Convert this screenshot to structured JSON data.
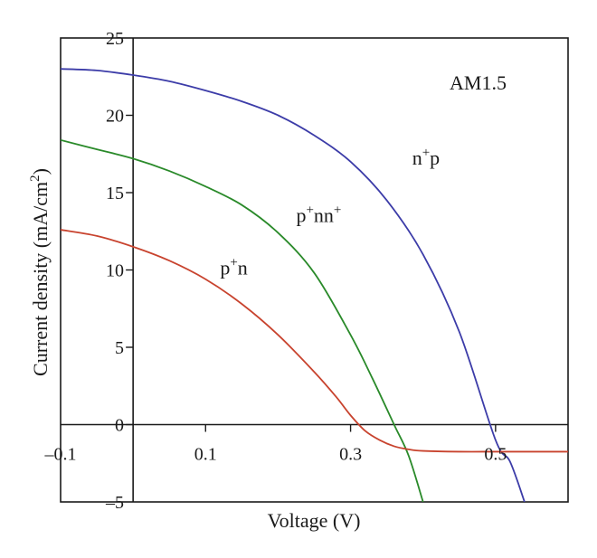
{
  "chart_data": {
    "type": "line",
    "title": "",
    "xlabel": "Voltage (V)",
    "ylabel_parts": {
      "main": "Current density (mA/cm",
      "sup": "2",
      "close": ")"
    },
    "xlim": [
      -0.1,
      0.6
    ],
    "ylim": [
      -5,
      25
    ],
    "x_ticks": [
      {
        "value": -0.1,
        "label": "–0.1"
      },
      {
        "value": 0.1,
        "label": "0.1"
      },
      {
        "value": 0.3,
        "label": "0.3"
      },
      {
        "value": 0.5,
        "label": "0.5"
      }
    ],
    "y_ticks": [
      {
        "value": 25,
        "label": "25"
      },
      {
        "value": 20,
        "label": "20"
      },
      {
        "value": 15,
        "label": "15"
      },
      {
        "value": 10,
        "label": "10"
      },
      {
        "value": 5,
        "label": "5"
      },
      {
        "value": 0,
        "label": "0"
      },
      {
        "value": -5,
        "label": "–5"
      }
    ],
    "annotation": "AM1.5",
    "series": [
      {
        "label_parts": [
          {
            "t": "n"
          },
          {
            "t": "+",
            "sup": true
          },
          {
            "t": "p"
          }
        ],
        "color": "#3c3ca8",
        "label_at": [
          0.385,
          16.8
        ],
        "x": [
          -0.1,
          -0.05,
          0.0,
          0.05,
          0.1,
          0.15,
          0.2,
          0.25,
          0.3,
          0.35,
          0.4,
          0.45,
          0.5,
          0.52,
          0.54
        ],
        "y": [
          23.0,
          22.9,
          22.6,
          22.2,
          21.6,
          20.9,
          20.0,
          18.7,
          17.0,
          14.5,
          11.0,
          6.0,
          -1.0,
          -2.4,
          -5.0
        ]
      },
      {
        "label_parts": [
          {
            "t": "p"
          },
          {
            "t": "+",
            "sup": true
          },
          {
            "t": "nn"
          },
          {
            "t": "+",
            "sup": true
          }
        ],
        "color": "#2a8a2a",
        "label_at": [
          0.225,
          13.1
        ],
        "x": [
          -0.1,
          -0.05,
          0.0,
          0.05,
          0.1,
          0.15,
          0.2,
          0.25,
          0.3,
          0.33,
          0.36,
          0.38,
          0.4
        ],
        "y": [
          18.4,
          17.8,
          17.2,
          16.4,
          15.4,
          14.2,
          12.4,
          9.8,
          5.8,
          3.0,
          0.0,
          -2.0,
          -5.0
        ]
      },
      {
        "label_parts": [
          {
            "t": "p"
          },
          {
            "t": "+",
            "sup": true
          },
          {
            "t": "n"
          }
        ],
        "color": "#c8432e",
        "label_at": [
          0.12,
          9.7
        ],
        "x": [
          -0.1,
          -0.05,
          0.0,
          0.05,
          0.1,
          0.15,
          0.2,
          0.25,
          0.28,
          0.3,
          0.32,
          0.34,
          0.36,
          0.38,
          0.4,
          0.45,
          0.5,
          0.55,
          0.6
        ],
        "y": [
          12.6,
          12.2,
          11.5,
          10.6,
          9.4,
          7.8,
          5.8,
          3.4,
          1.8,
          0.6,
          -0.4,
          -1.0,
          -1.4,
          -1.6,
          -1.7,
          -1.75,
          -1.75,
          -1.75,
          -1.75
        ]
      }
    ]
  }
}
